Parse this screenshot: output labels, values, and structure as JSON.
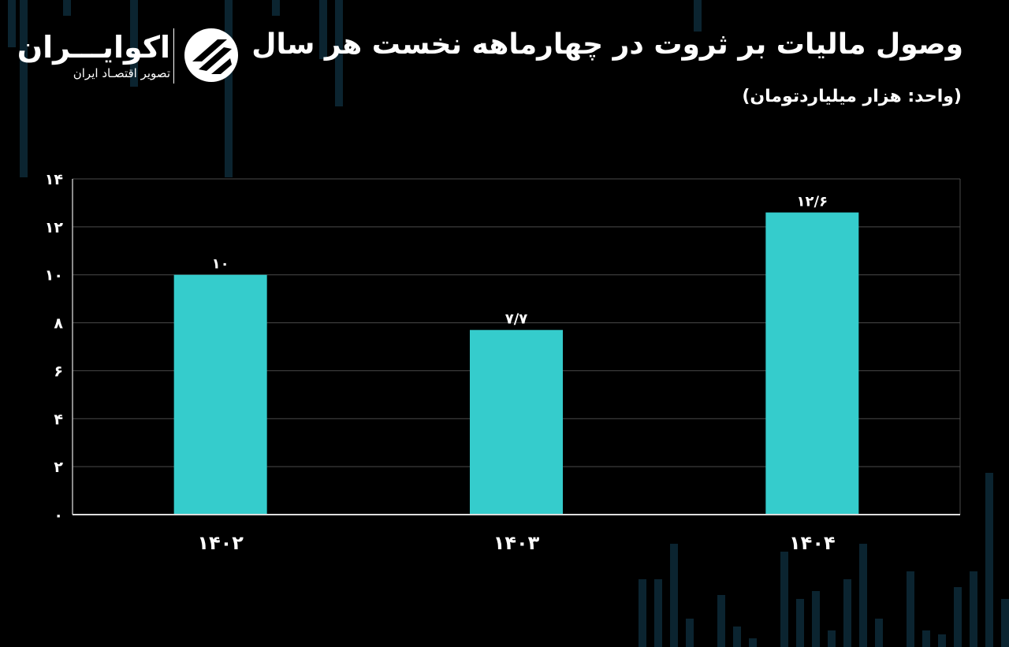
{
  "header": {
    "title": "وصول مالیات بر ثروت در چهارماهه نخست هر سال",
    "unit": "(واحد: هزار میلیاردتومان)"
  },
  "brand": {
    "name": "اکوایـــران",
    "tagline": "تصویر اقتصـاد ایران",
    "logo_icon": "ecoiran-logo-icon"
  },
  "colors": {
    "background": "#000000",
    "bar": "#35cccc",
    "text": "#ffffff",
    "grid": "#4a4a4a"
  },
  "chart_data": {
    "type": "bar",
    "title": "وصول مالیات بر ثروت در چهارماهه نخست هر سال",
    "ylabel": "(واحد: هزار میلیاردتومان)",
    "xlabel": "",
    "categories": [
      "۱۴۰۲",
      "۱۴۰۳",
      "۱۴۰۴"
    ],
    "values": [
      10,
      7.7,
      12.6
    ],
    "data_labels": [
      "۱۰",
      "۷/۷",
      "۱۲/۶"
    ],
    "ylim": [
      0,
      14
    ],
    "yticks": [
      0,
      2,
      4,
      6,
      8,
      10,
      12,
      14
    ],
    "ytick_labels": [
      "۰",
      "۲",
      "۴",
      "۶",
      "۸",
      "۱۰",
      "۱۲",
      "۱۴"
    ],
    "grid": true,
    "legend": "none"
  }
}
